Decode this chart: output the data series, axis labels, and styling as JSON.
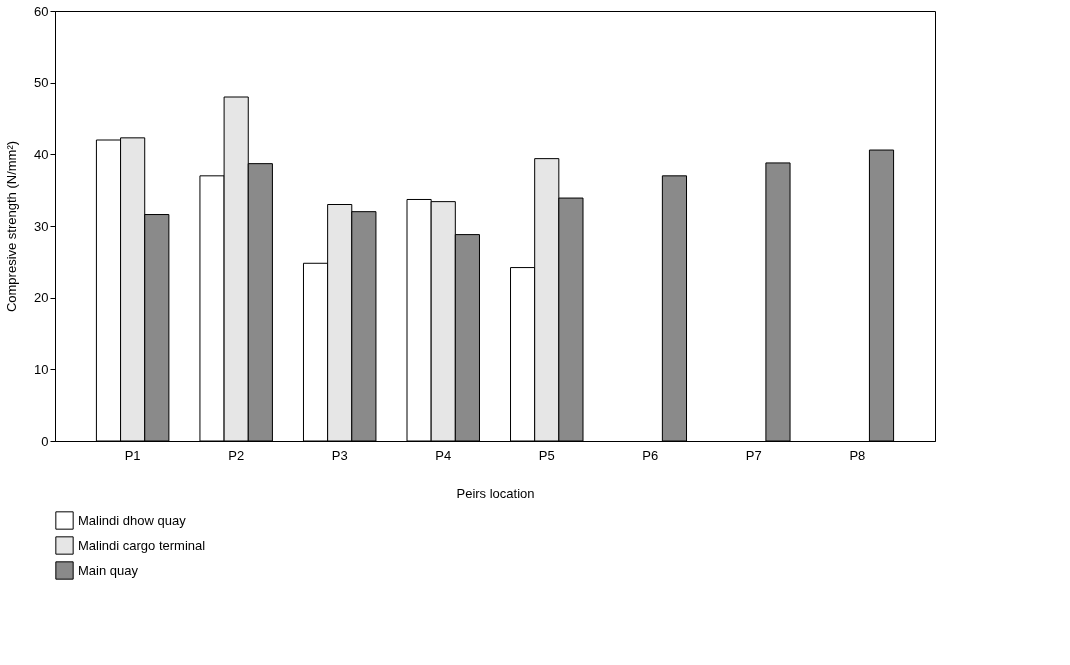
{
  "chart_data": {
    "type": "bar",
    "xlabel": "Peirs location",
    "ylabel": "Compresive strength (N/mm²)",
    "categories": [
      "P1",
      "P2",
      "P3",
      "P4",
      "P5",
      "P6",
      "P7",
      "P8"
    ],
    "series": [
      {
        "name": "Malindi dhow quay",
        "color": "#ffffff",
        "values": [
          42,
          37,
          24.8,
          33.7,
          24.2,
          null,
          null,
          null
        ]
      },
      {
        "name": "Malindi cargo terminal",
        "color": "#e6e6e6",
        "values": [
          42.3,
          48,
          33,
          33.4,
          39.4,
          null,
          null,
          null
        ]
      },
      {
        "name": "Main quay",
        "color": "#8a8a8a",
        "values": [
          31.6,
          38.7,
          32,
          28.8,
          33.9,
          37,
          38.8,
          40.6
        ]
      }
    ],
    "ylim": [
      0,
      60
    ],
    "yticks": [
      0,
      10,
      20,
      30,
      40,
      50,
      60
    ],
    "grid": false,
    "legend": "bottom left"
  }
}
